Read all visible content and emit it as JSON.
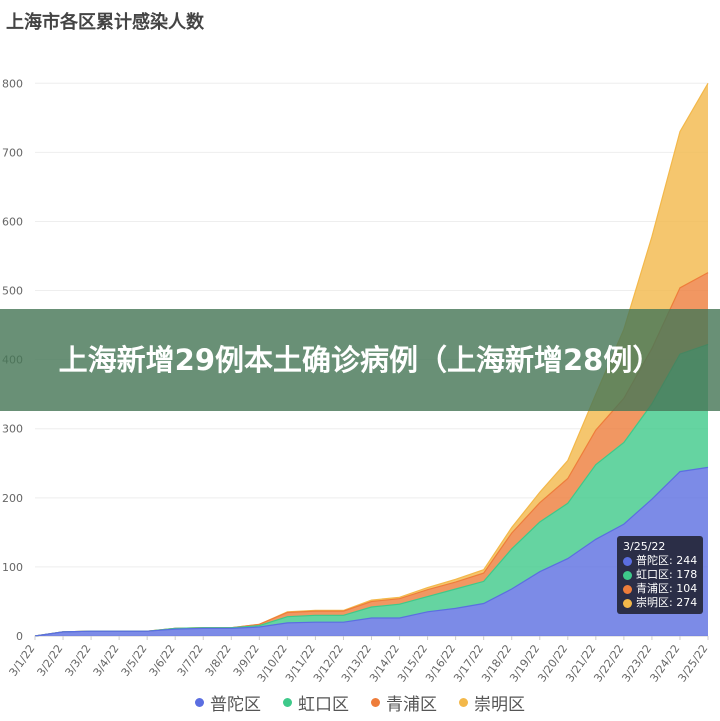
{
  "banner": {
    "headline": "上海新增29例本土确诊病例（上海新增28例）"
  },
  "chart_data": {
    "type": "area",
    "stacked": true,
    "title": "上海市各区累计感染人数",
    "xlabel": "",
    "ylabel": "",
    "ylim": [
      0,
      880
    ],
    "yticks": [
      0,
      100,
      200,
      300,
      400,
      500,
      600,
      700,
      800
    ],
    "grid": "horizontal",
    "legend_position": "bottom",
    "categories": [
      "3/1/22",
      "3/2/22",
      "3/3/22",
      "3/4/22",
      "3/5/22",
      "3/6/22",
      "3/7/22",
      "3/8/22",
      "3/9/22",
      "3/10/22",
      "3/11/22",
      "3/12/22",
      "3/13/22",
      "3/14/22",
      "3/15/22",
      "3/16/22",
      "3/17/22",
      "3/18/22",
      "3/19/22",
      "3/20/22",
      "3/21/22",
      "3/22/22",
      "3/23/22",
      "3/24/22",
      "3/25/22"
    ],
    "series": [
      {
        "name": "普陀区",
        "color": "#5b6ee1",
        "values": [
          0,
          6,
          7,
          7,
          7,
          10,
          11,
          11,
          13,
          19,
          20,
          20,
          26,
          26,
          35,
          40,
          47,
          68,
          93,
          112,
          140,
          162,
          198,
          238,
          244
        ]
      },
      {
        "name": "虹口区",
        "color": "#3ec98a",
        "values": [
          0,
          0,
          0,
          0,
          0,
          1,
          1,
          1,
          2,
          9,
          10,
          10,
          16,
          20,
          22,
          28,
          32,
          58,
          72,
          80,
          108,
          118,
          138,
          170,
          178
        ]
      },
      {
        "name": "青浦区",
        "color": "#ee7d3b",
        "values": [
          0,
          0,
          0,
          0,
          0,
          0,
          0,
          0,
          2,
          6,
          6,
          6,
          8,
          8,
          10,
          10,
          12,
          23,
          28,
          36,
          50,
          64,
          80,
          96,
          104
        ]
      },
      {
        "name": "崇明区",
        "color": "#f3b84a",
        "values": [
          0,
          0,
          0,
          0,
          0,
          0,
          0,
          0,
          0,
          1,
          1,
          1,
          2,
          2,
          3,
          4,
          5,
          8,
          15,
          26,
          52,
          100,
          162,
          226,
          274
        ]
      }
    ],
    "tooltip": {
      "date": "3/25/22",
      "rows": [
        {
          "label": "普陀区: 244",
          "color": "#5b6ee1"
        },
        {
          "label": "虹口区: 178",
          "color": "#3ec98a"
        },
        {
          "label": "青浦区: 104",
          "color": "#ee7d3b"
        },
        {
          "label": "崇明区: 274",
          "color": "#f3b84a"
        }
      ]
    }
  }
}
